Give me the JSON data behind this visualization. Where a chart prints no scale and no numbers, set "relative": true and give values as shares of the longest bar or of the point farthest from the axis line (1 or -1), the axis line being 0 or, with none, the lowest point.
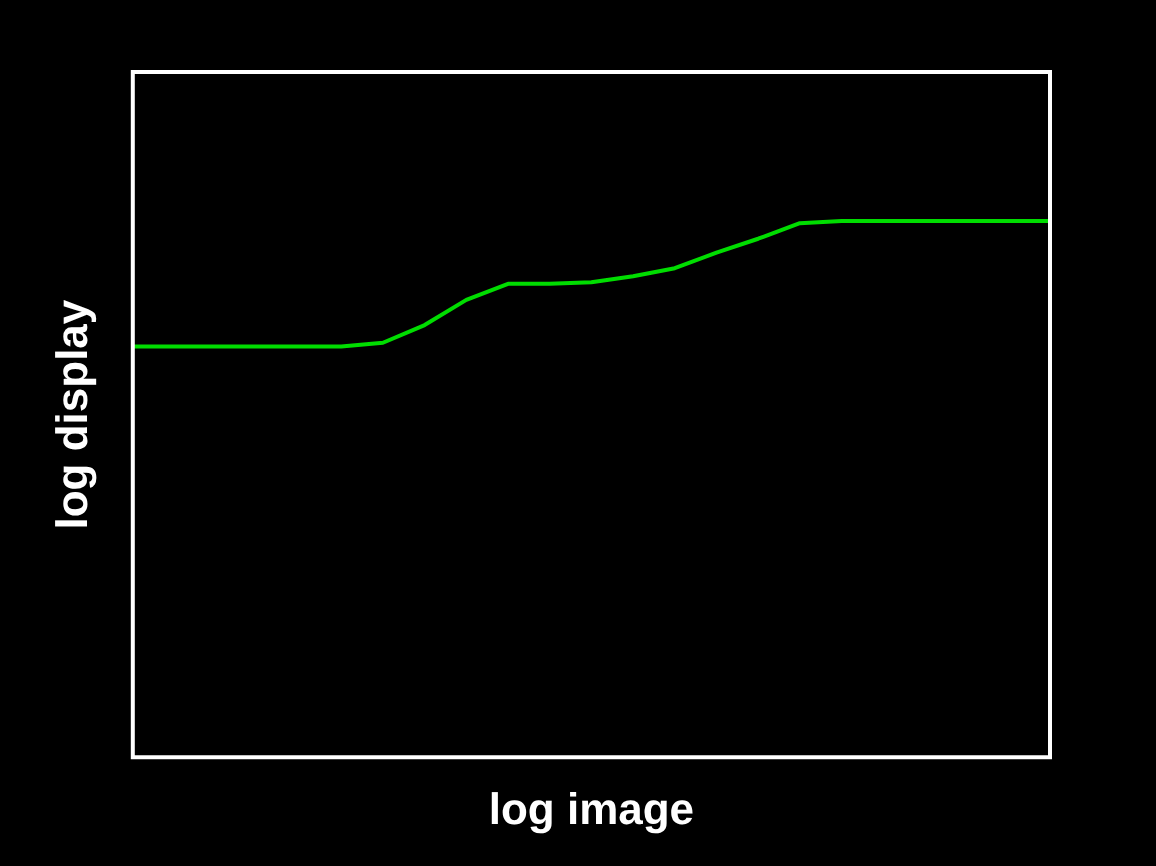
{
  "chart_data": {
    "type": "line",
    "xlabel": "log image",
    "ylabel": "log display",
    "relative": true,
    "categories": [
      null,
      null,
      null,
      null,
      null,
      null,
      null,
      null,
      null,
      null,
      null,
      null,
      null,
      null,
      null,
      null,
      null,
      null,
      null,
      null,
      null,
      null,
      null
    ],
    "series": [
      {
        "color": "#00dd00",
        "values": [
          0.766,
          0.766,
          0.766,
          0.766,
          0.766,
          0.766,
          0.773,
          0.806,
          0.853,
          0.883,
          0.883,
          0.886,
          0.897,
          0.912,
          0.941,
          0.967,
          0.996,
          1,
          1,
          1,
          1,
          1,
          1
        ]
      }
    ],
    "legend": false,
    "marker": "none",
    "line_style": "solid"
  }
}
